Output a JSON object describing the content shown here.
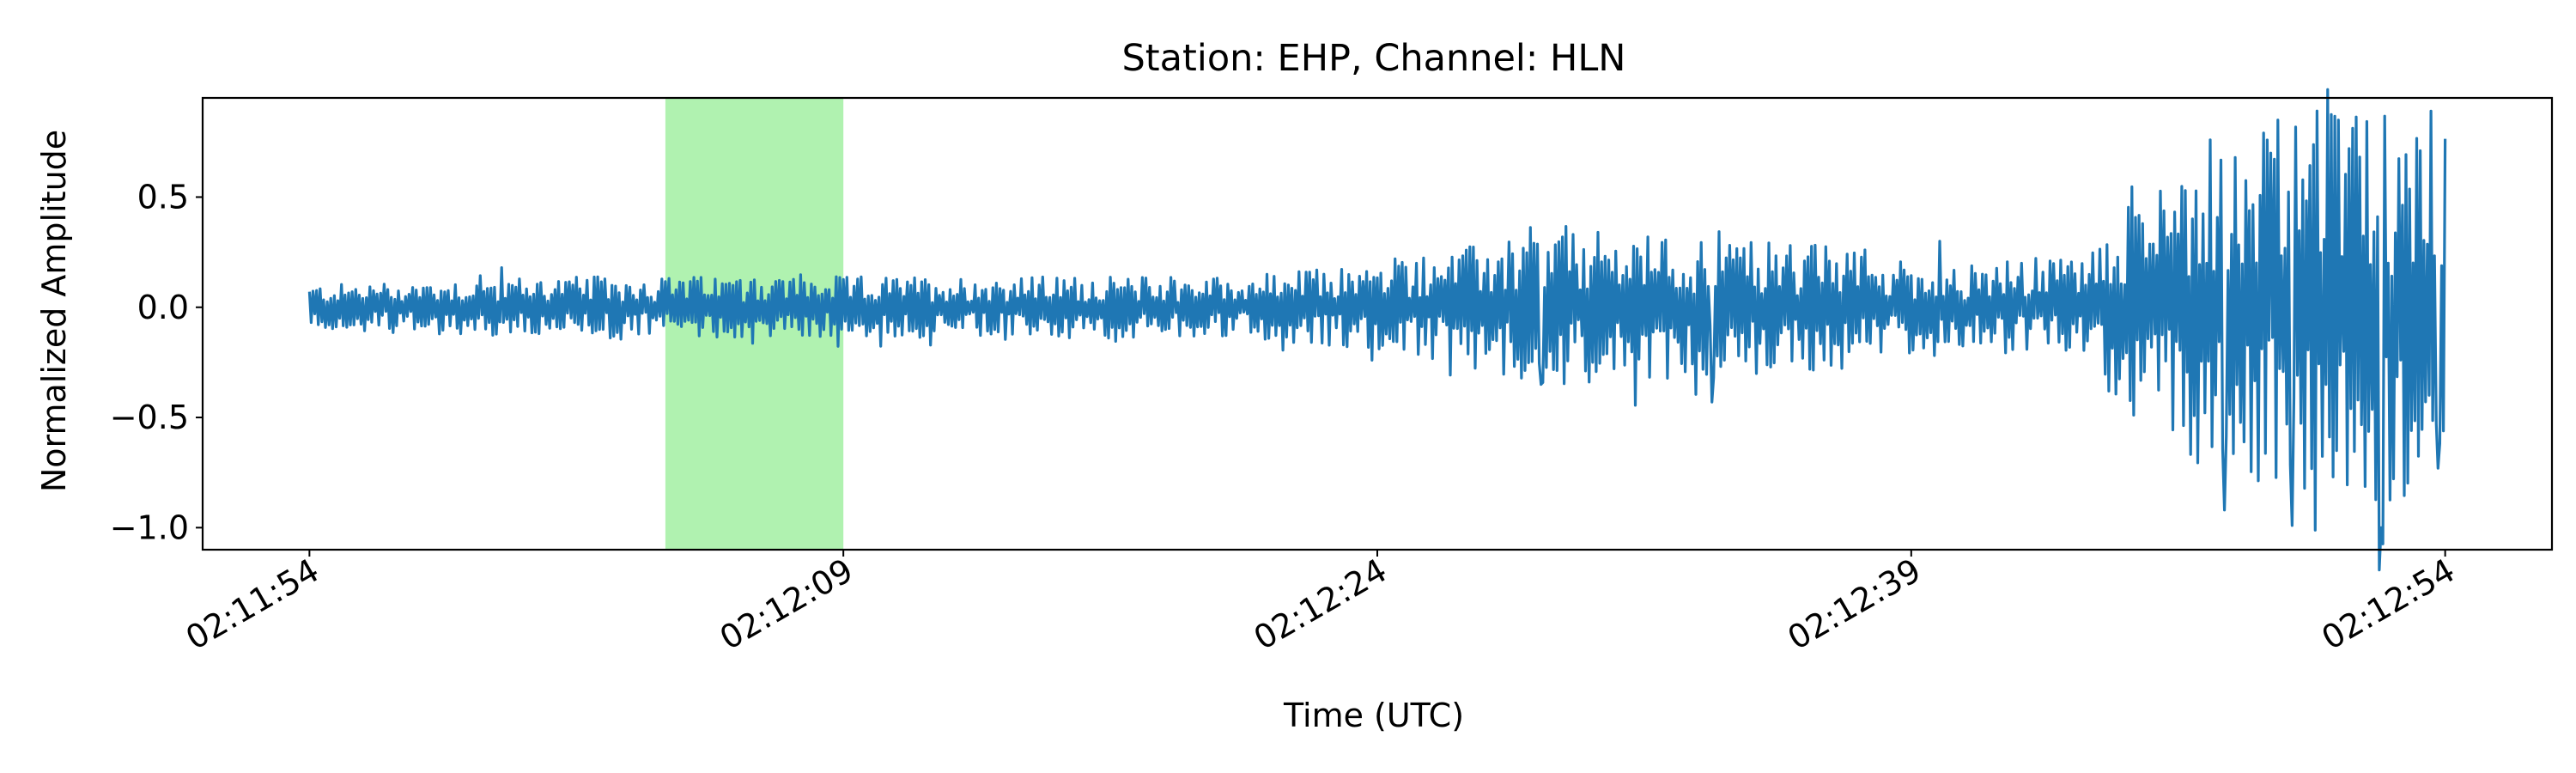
{
  "chart_data": {
    "type": "line",
    "title": "Station: EHP, Channel: HLN",
    "xlabel": "Time (UTC)",
    "ylabel": "Normalized Amplitude",
    "x_range": [
      "02:11:51",
      "02:12:57"
    ],
    "ylim": [
      -1.1,
      0.95
    ],
    "x_ticks": [
      "02:11:54",
      "02:12:09",
      "02:12:24",
      "02:12:39",
      "02:12:54"
    ],
    "y_ticks": [
      0.5,
      0.0,
      -0.5,
      -1.0
    ],
    "y_tick_labels": [
      "0.5",
      "0.0",
      "−0.5",
      "−1.0"
    ],
    "grid": false,
    "highlight_span": {
      "start": "02:12:04",
      "end": "02:12:09",
      "color": "#b0f2b0"
    },
    "series": [
      {
        "color": "#1f77b4",
        "sample_spacing_s": 0.05,
        "start": "02:11:54",
        "end": "02:12:54",
        "envelope": [
          {
            "t": "02:11:54",
            "amp": 0.1
          },
          {
            "t": "02:12:00",
            "amp": 0.14
          },
          {
            "t": "02:12:09",
            "amp": 0.14
          },
          {
            "t": "02:12:20",
            "amp": 0.14
          },
          {
            "t": "02:12:24",
            "amp": 0.2
          },
          {
            "t": "02:12:29",
            "amp": 0.35
          },
          {
            "t": "02:12:36",
            "amp": 0.3
          },
          {
            "t": "02:12:40",
            "amp": 0.18
          },
          {
            "t": "02:12:44",
            "amp": 0.25
          },
          {
            "t": "02:12:46",
            "amp": 0.65
          },
          {
            "t": "02:12:50",
            "amp": 0.9
          },
          {
            "t": "02:12:54",
            "amp": 0.9
          }
        ],
        "peaks": [
          {
            "t": "02:12:24.5",
            "y": 0.22
          },
          {
            "t": "02:12:28.6",
            "y": -0.35
          },
          {
            "t": "02:12:33.4",
            "y": -0.43
          },
          {
            "t": "02:12:39.8",
            "y": 0.3
          },
          {
            "t": "02:12:47.4",
            "y": 0.76
          },
          {
            "t": "02:12:47.8",
            "y": -0.92
          },
          {
            "t": "02:12:49.3",
            "y": 0.85
          },
          {
            "t": "02:12:49.7",
            "y": -0.99
          },
          {
            "t": "02:12:51.0",
            "y": 0.85
          },
          {
            "t": "02:12:52.2",
            "y": -1.0
          },
          {
            "t": "02:12:53.6",
            "y": 0.89
          },
          {
            "t": "02:12:53.8",
            "y": -0.73
          }
        ]
      }
    ]
  }
}
